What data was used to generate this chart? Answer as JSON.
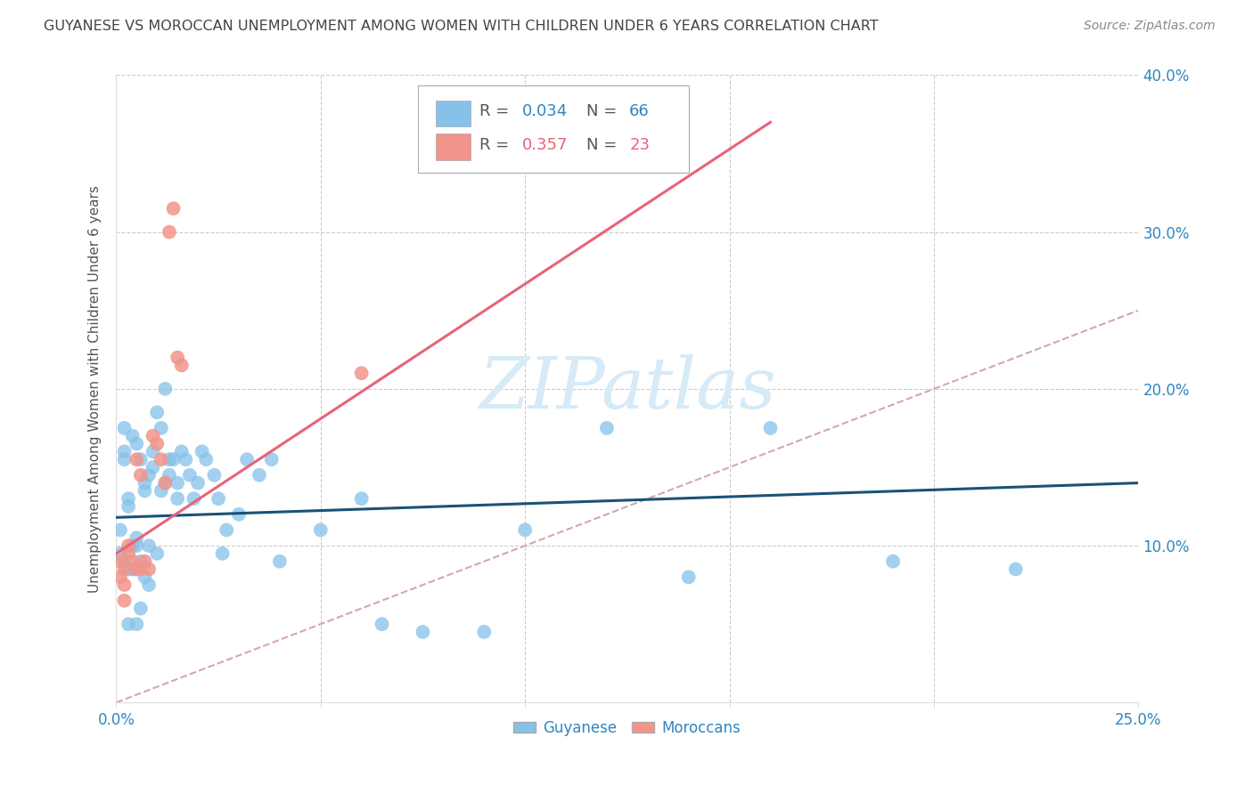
{
  "title": "GUYANESE VS MOROCCAN UNEMPLOYMENT AMONG WOMEN WITH CHILDREN UNDER 6 YEARS CORRELATION CHART",
  "source": "Source: ZipAtlas.com",
  "ylabel": "Unemployment Among Women with Children Under 6 years",
  "xlim": [
    0.0,
    0.25
  ],
  "ylim": [
    0.0,
    0.4
  ],
  "r_guyanese": 0.034,
  "n_guyanese": 66,
  "r_moroccan": 0.357,
  "n_moroccan": 23,
  "color_guyanese": "#85C1E9",
  "color_moroccan": "#F1948A",
  "line_color_guyanese": "#1A5276",
  "line_color_moroccan": "#E8637A",
  "diagonal_color": "#D5A6AD",
  "background_color": "#FFFFFF",
  "title_color": "#444444",
  "tick_label_color": "#2E86C1",
  "watermark_color": "#D6EAF8",
  "guyanese_x": [
    0.001,
    0.001,
    0.002,
    0.002,
    0.002,
    0.002,
    0.003,
    0.003,
    0.003,
    0.003,
    0.004,
    0.004,
    0.004,
    0.005,
    0.005,
    0.005,
    0.005,
    0.006,
    0.006,
    0.006,
    0.007,
    0.007,
    0.007,
    0.008,
    0.008,
    0.008,
    0.009,
    0.009,
    0.01,
    0.01,
    0.011,
    0.011,
    0.012,
    0.012,
    0.013,
    0.013,
    0.014,
    0.015,
    0.015,
    0.016,
    0.017,
    0.018,
    0.019,
    0.02,
    0.021,
    0.022,
    0.024,
    0.025,
    0.026,
    0.027,
    0.03,
    0.032,
    0.035,
    0.038,
    0.04,
    0.05,
    0.06,
    0.065,
    0.075,
    0.09,
    0.1,
    0.12,
    0.14,
    0.16,
    0.19,
    0.22
  ],
  "guyanese_y": [
    0.11,
    0.095,
    0.16,
    0.155,
    0.175,
    0.09,
    0.13,
    0.125,
    0.085,
    0.05,
    0.1,
    0.17,
    0.085,
    0.105,
    0.1,
    0.165,
    0.05,
    0.155,
    0.09,
    0.06,
    0.135,
    0.14,
    0.08,
    0.145,
    0.1,
    0.075,
    0.15,
    0.16,
    0.185,
    0.095,
    0.175,
    0.135,
    0.2,
    0.14,
    0.155,
    0.145,
    0.155,
    0.13,
    0.14,
    0.16,
    0.155,
    0.145,
    0.13,
    0.14,
    0.16,
    0.155,
    0.145,
    0.13,
    0.095,
    0.11,
    0.12,
    0.155,
    0.145,
    0.155,
    0.09,
    0.11,
    0.13,
    0.05,
    0.045,
    0.045,
    0.11,
    0.175,
    0.08,
    0.175,
    0.09,
    0.085
  ],
  "moroccan_x": [
    0.001,
    0.001,
    0.002,
    0.002,
    0.002,
    0.003,
    0.003,
    0.004,
    0.005,
    0.005,
    0.006,
    0.006,
    0.007,
    0.008,
    0.009,
    0.01,
    0.011,
    0.012,
    0.013,
    0.014,
    0.015,
    0.016,
    0.06
  ],
  "moroccan_y": [
    0.09,
    0.08,
    0.085,
    0.075,
    0.065,
    0.1,
    0.095,
    0.09,
    0.155,
    0.085,
    0.085,
    0.145,
    0.09,
    0.085,
    0.17,
    0.165,
    0.155,
    0.14,
    0.3,
    0.315,
    0.22,
    0.215,
    0.21
  ],
  "guyanese_line_x": [
    0.0,
    0.25
  ],
  "guyanese_line_y": [
    0.118,
    0.14
  ],
  "moroccan_line_x": [
    0.0,
    0.16
  ],
  "moroccan_line_y": [
    0.095,
    0.37
  ]
}
